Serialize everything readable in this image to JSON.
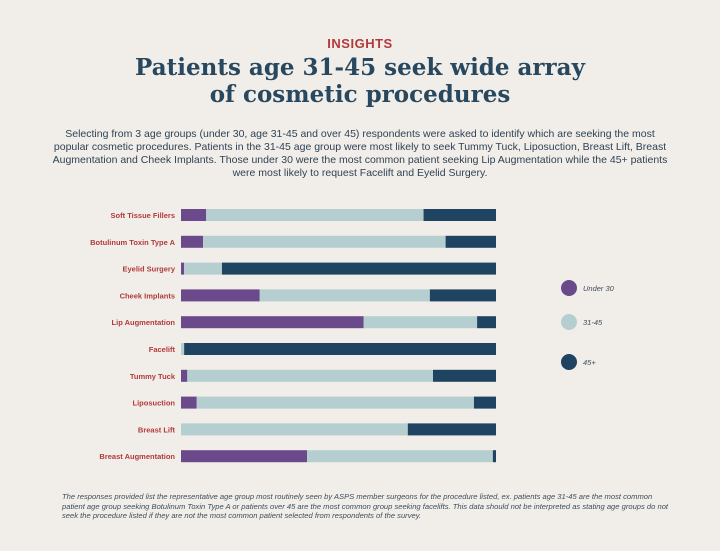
{
  "header": {
    "eyebrow": "INSIGHTS",
    "title_line1": "Patients age 31-45 seek wide array",
    "title_line2": "of cosmetic procedures"
  },
  "intro": "Selecting from 3 age groups (under 30, age 31-45 and over 45) respondents were asked to identify which are seeking the most popular cosmetic procedures. Patients in the 31-45 age group were most likely to seek Tummy Tuck, Liposuction, Breast Lift, Breast Augmentation and Cheek Implants. Those under 30 were the most common patient seeking Lip Augmentation while the 45+ patients were most likely to request Facelift and Eyelid Surgery.",
  "footnote": "The responses provided list the representative age group most routinely seen by ASPS member surgeons for the procedure listed, ex. patients age 31-45 are the most common patient age group seeking Botulinum Toxin Type A or patients over 45 are the most common group seeking facelifts. This data should not be interpreted as stating age groups do not seek the procedure listed if they are not the most common patient selected from respondents of the survey.",
  "colors": {
    "under30": "#6b4a8c",
    "mid": "#b5cfd0",
    "over45": "#1f4461",
    "label": "#b23a3a",
    "legend_text": "#3c4e5e"
  },
  "chart_data": {
    "type": "bar",
    "orientation": "horizontal",
    "stacked": true,
    "normalized_percent": true,
    "categories": [
      "Soft Tissue Fillers",
      "Botulinum Toxin Type A",
      "Eyelid Surgery",
      "Cheek Implants",
      "Lip Augmentation",
      "Facelift",
      "Tummy Tuck",
      "Liposuction",
      "Breast Lift",
      "Breast Augmentation"
    ],
    "series": [
      {
        "name": "Under 30",
        "values": [
          8,
          7,
          1,
          25,
          58,
          0,
          2,
          5,
          0,
          40
        ]
      },
      {
        "name": "31-45",
        "values": [
          69,
          77,
          12,
          54,
          36,
          1,
          78,
          88,
          72,
          59
        ]
      },
      {
        "name": "45+",
        "values": [
          23,
          16,
          87,
          21,
          6,
          99,
          20,
          7,
          28,
          1
        ]
      }
    ],
    "xlim": [
      0,
      100
    ],
    "legend_position": "right",
    "grid": false
  }
}
